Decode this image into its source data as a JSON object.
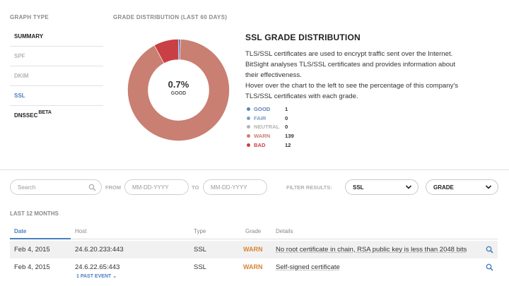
{
  "graph_type": {
    "heading": "GRAPH TYPE",
    "items": [
      "SUMMARY",
      "SPF",
      "DKIM",
      "SSL",
      "DNSSEC"
    ],
    "beta_tag": "BETA",
    "active": "SSL"
  },
  "distribution": {
    "heading": "GRADE DISTRIBUTION (LAST 60 DAYS)",
    "center_value": "0.7%",
    "center_label": "GOOD"
  },
  "chart_data": {
    "type": "pie",
    "style": "donut",
    "categories": [
      "GOOD",
      "FAIR",
      "NEUTRAL",
      "WARN",
      "BAD"
    ],
    "values": [
      1,
      0,
      0,
      139,
      12
    ],
    "colors": [
      "#5b82b8",
      "#7f9cc6",
      "#b3b3b3",
      "#c97f72",
      "#c94044"
    ]
  },
  "description": {
    "title": "SSL GRADE DISTRIBUTION",
    "text_lines": [
      "TLS/SSL certificates are used to encrypt traffic sent over the Internet.",
      "BitSight analyses TLS/SSL certificates and provides information about",
      "their effectiveness.",
      "Hover over the chart to the left to see the percentage of this company's",
      "TLS/SSL certificates with each grade."
    ]
  },
  "legend": [
    {
      "name": "GOOD",
      "count": "1",
      "color": "#5b82b8"
    },
    {
      "name": "FAIR",
      "count": "0",
      "color": "#7f9cc6"
    },
    {
      "name": "NEUTRAL",
      "count": "0",
      "color": "#b3b3b3"
    },
    {
      "name": "WARN",
      "count": "139",
      "color": "#c97f72"
    },
    {
      "name": "BAD",
      "count": "12",
      "color": "#c94044"
    }
  ],
  "filters": {
    "search_placeholder": "Search",
    "from_label": "FROM",
    "from_placeholder": "MM-DD-YYYY",
    "to_label": "TO",
    "to_placeholder": "MM-DD-YYYY",
    "filter_label": "FILTER RESULTS:",
    "type_value": "SSL",
    "grade_value": "GRADE"
  },
  "table": {
    "section_label": "LAST 12 MONTHS",
    "columns": [
      "Date",
      "Host",
      "Type",
      "Grade",
      "Details"
    ],
    "rows": [
      {
        "date": "Feb 4, 2015",
        "host": "24.6.20.233:443",
        "type": "SSL",
        "grade": "WARN",
        "details": "No root certificate in chain, RSA public key is less than 2048 bits"
      },
      {
        "date": "Feb 4, 2015",
        "host": "24.6.22.65:443",
        "type": "SSL",
        "grade": "WARN",
        "details": "Self-signed certificate",
        "past_event": "1 PAST EVENT"
      }
    ]
  }
}
